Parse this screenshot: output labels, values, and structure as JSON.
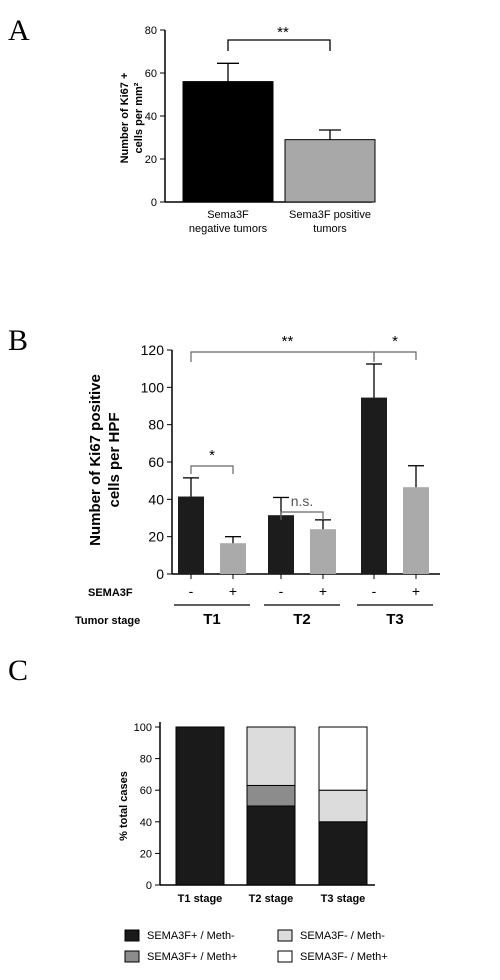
{
  "panels": {
    "a": "A",
    "b": "B",
    "c": "C"
  },
  "chart_data": [
    {
      "type": "bar",
      "categories": [
        [
          "Sema3F",
          "negative tumors"
        ],
        [
          "Sema3F positive",
          "tumors"
        ]
      ],
      "values": [
        56,
        29
      ],
      "errors": [
        8.5,
        4.5
      ],
      "ylabel": [
        "Number of Ki67 +",
        "cells per mm²"
      ],
      "ylim": [
        0,
        80
      ],
      "yticks": [
        0,
        20,
        40,
        60,
        80
      ],
      "bar_colors": [
        "#000000",
        "#a8a8a8"
      ],
      "comparisons": [
        {
          "from": 0,
          "to": 1,
          "label": "**"
        }
      ],
      "grid": false
    },
    {
      "type": "bar",
      "groups": [
        "T1",
        "T2",
        "T3"
      ],
      "row_labels": {
        "treatment": "SEMA3F",
        "stage": "Tumor stage"
      },
      "bar_signs": [
        "-",
        "+"
      ],
      "series": [
        {
          "values": [
            41.5,
            31.5,
            94.5
          ],
          "errors": [
            10,
            9.5,
            18
          ],
          "color": "#1c1c1c"
        },
        {
          "values": [
            16.5,
            24,
            46.5
          ],
          "errors": [
            3.5,
            5,
            11.5
          ],
          "color": "#aaaaaa"
        }
      ],
      "ylabel": [
        "Number of Ki67 positive",
        "cells per HPF"
      ],
      "ylim": [
        0,
        120
      ],
      "yticks": [
        0,
        20,
        40,
        60,
        80,
        100,
        120
      ],
      "comparisons": [
        {
          "group": 0,
          "label": "*"
        },
        {
          "group": 1,
          "label": "n.s."
        },
        {
          "group": 2,
          "label": "*"
        },
        {
          "across": [
            0,
            2
          ],
          "label": "**"
        }
      ],
      "grid": false
    },
    {
      "type": "bar",
      "stacked": true,
      "categories": [
        "T1 stage",
        "T2 stage",
        "T3 stage"
      ],
      "series": [
        {
          "name": "SEMA3F+ / Meth-",
          "values": [
            100,
            50,
            40
          ],
          "color": "#1a1a1a"
        },
        {
          "name": "SEMA3F+ / Meth+",
          "values": [
            0,
            13,
            0
          ],
          "color": "#8c8c8c"
        },
        {
          "name": "SEMA3F- / Meth-",
          "values": [
            0,
            37,
            20
          ],
          "color": "#dcdcdc"
        },
        {
          "name": "SEMA3F- / Meth+",
          "values": [
            0,
            0,
            40
          ],
          "color": "#ffffff"
        }
      ],
      "ylabel": "% total cases",
      "ylim": [
        0,
        100
      ],
      "yticks": [
        0,
        20,
        40,
        60,
        80,
        100
      ],
      "legend_position": "bottom",
      "grid": false
    }
  ]
}
